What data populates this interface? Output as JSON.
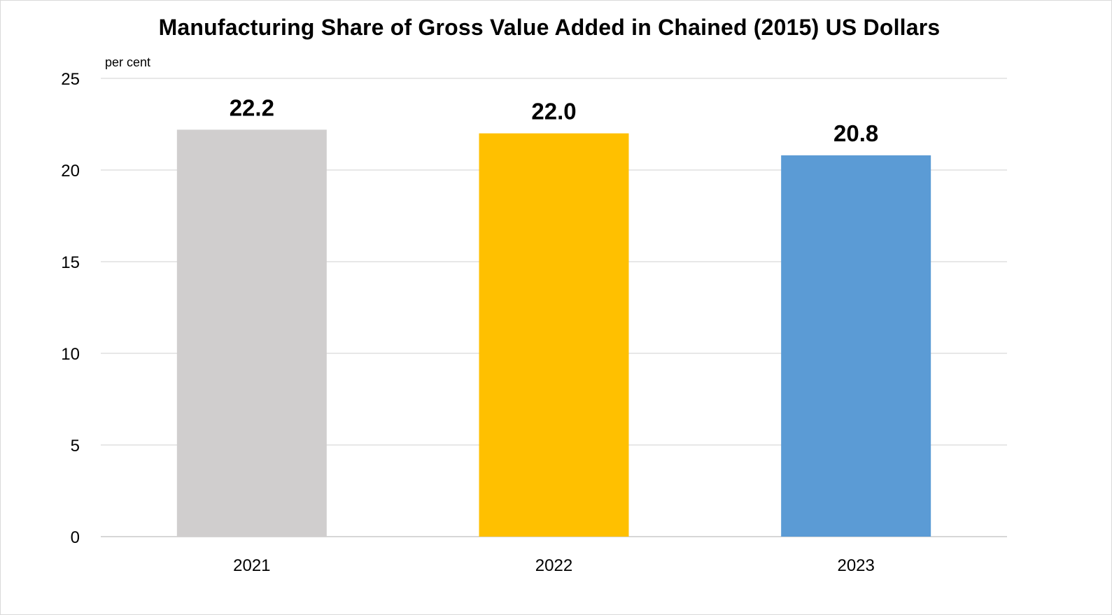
{
  "chart_data": {
    "type": "bar",
    "title": "Manufacturing Share of Gross Value Added in Chained (2015) US Dollars",
    "ylabel": "per cent",
    "xlabel": "",
    "categories": [
      "2021",
      "2022",
      "2023"
    ],
    "values": [
      22.2,
      22.0,
      20.8
    ],
    "data_labels": [
      "22.2",
      "22.0",
      "20.8"
    ],
    "bar_colors": [
      "#d0cece",
      "#ffc000",
      "#5b9bd5"
    ],
    "ylim": [
      0,
      25
    ],
    "yticks": [
      0,
      5,
      10,
      15,
      20,
      25
    ],
    "ytick_labels": [
      "0",
      "5",
      "10",
      "15",
      "20",
      "25"
    ],
    "grid": true,
    "legend": "none"
  }
}
